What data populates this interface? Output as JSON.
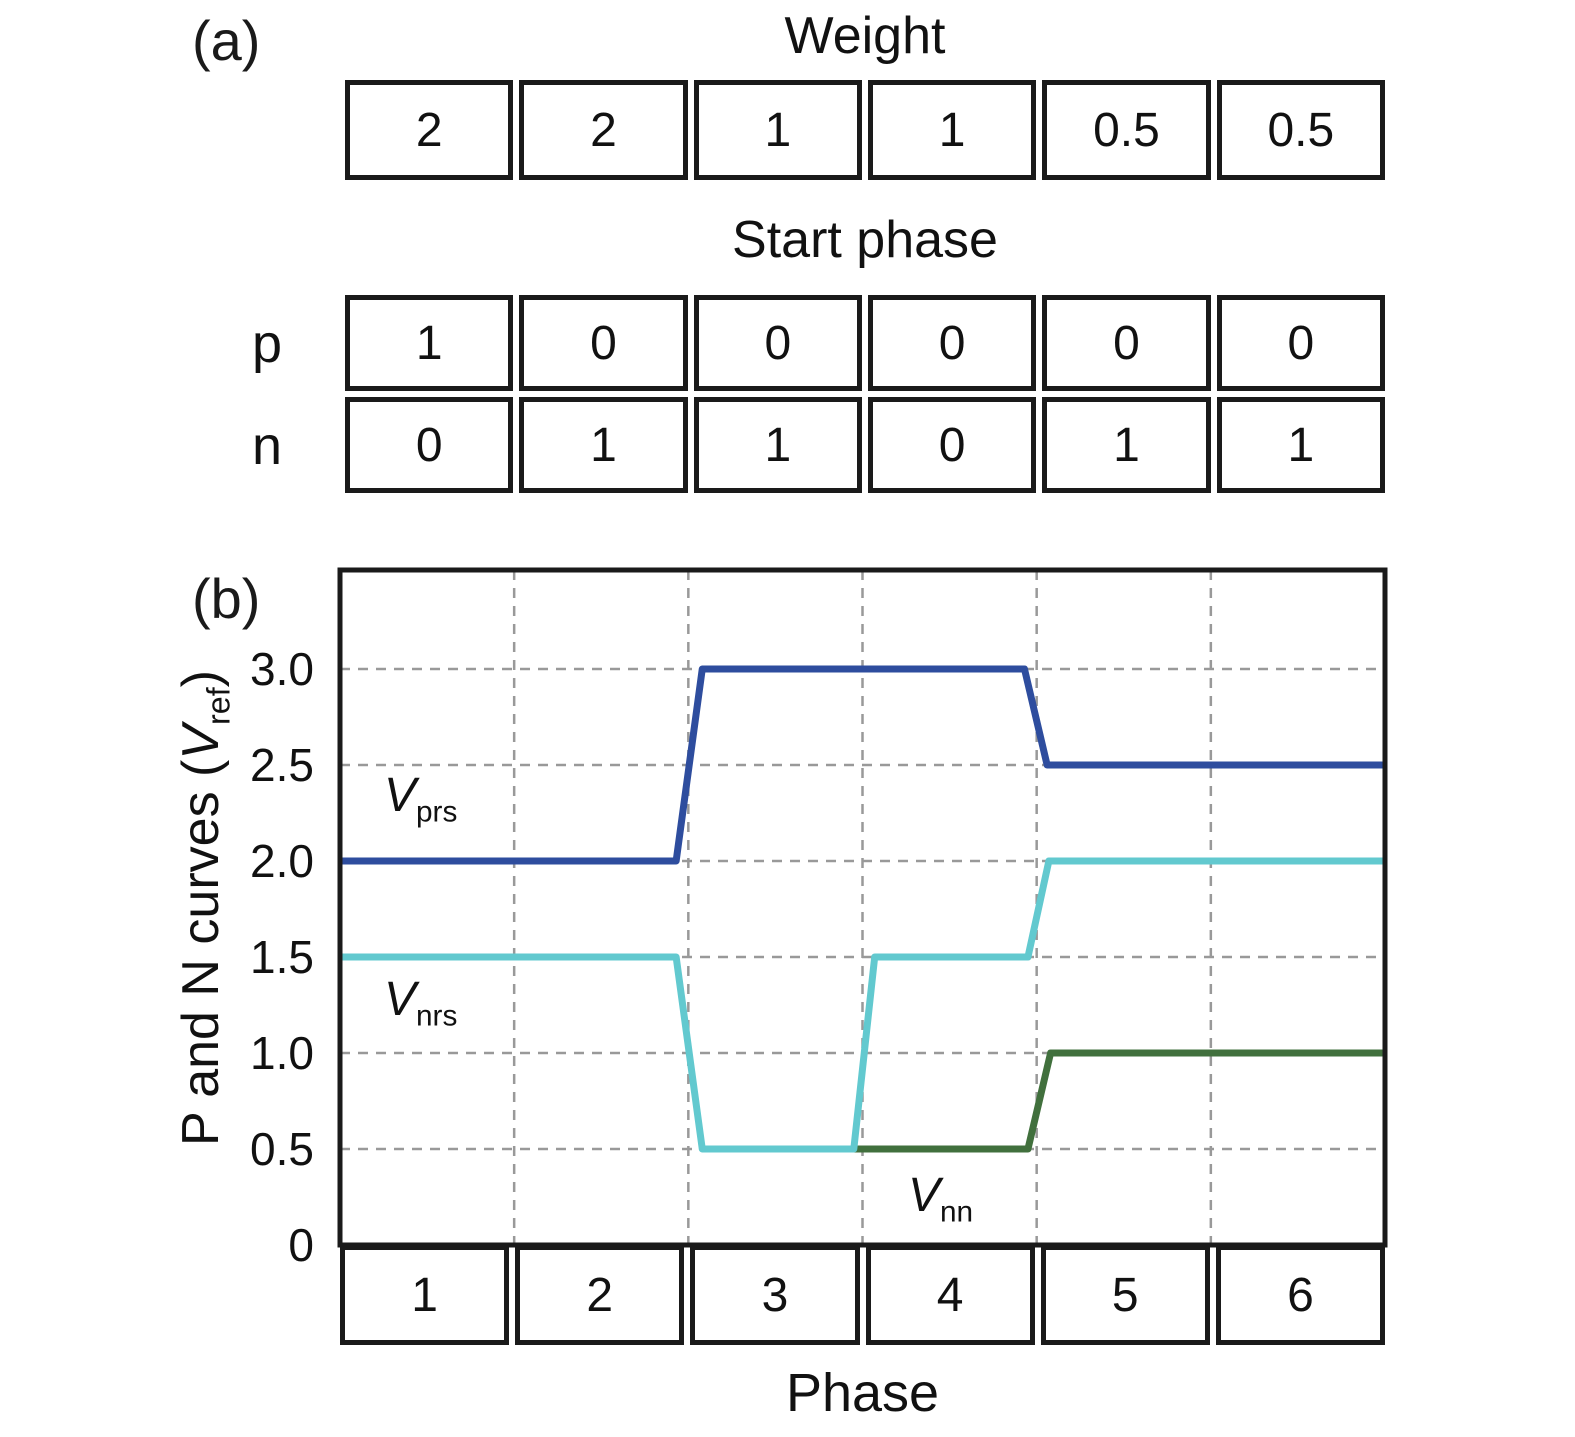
{
  "panel_a": {
    "label": "(a)",
    "weight": {
      "title": "Weight",
      "values": [
        "2",
        "2",
        "1",
        "1",
        "0.5",
        "0.5"
      ]
    },
    "start_phase": {
      "title": "Start phase",
      "rows": [
        {
          "label": "p",
          "values": [
            "1",
            "0",
            "0",
            "0",
            "0",
            "0"
          ]
        },
        {
          "label": "n",
          "values": [
            "0",
            "1",
            "1",
            "0",
            "1",
            "1"
          ]
        }
      ]
    }
  },
  "panel_b": {
    "label": "(b)",
    "xlabel": "Phase",
    "ylabel": {
      "prefix": "P and N curves (",
      "var": "V",
      "sub": "ref",
      "suffix": ")"
    },
    "curve_labels": [
      {
        "var": "V",
        "sub": "prs"
      },
      {
        "var": "V",
        "sub": "nrs"
      },
      {
        "var": "V",
        "sub": "nn"
      }
    ]
  },
  "chart_data": {
    "type": "line",
    "title": "",
    "xlabel": "Phase",
    "ylabel": "P and N curves (V_ref)",
    "x_categories": [
      "1",
      "2",
      "3",
      "4",
      "5",
      "6"
    ],
    "xlim": [
      0,
      6
    ],
    "ylim": [
      0,
      3.5
    ],
    "yticks": [
      0,
      0.5,
      1.0,
      1.5,
      2.0,
      2.5,
      3.0
    ],
    "grid": "dashed",
    "legend_position": "inline-labels",
    "colors": {
      "V_prs": "#2e4d9e",
      "V_nn": "#41703d",
      "V_nrs": "#62c9cf",
      "grid": "#999999",
      "frame": "#1a1a1a"
    },
    "series": [
      {
        "name": "V_prs",
        "color": "#2e4d9e",
        "points": [
          [
            0,
            2.0
          ],
          [
            1.93,
            2.0
          ],
          [
            2.08,
            3.0
          ],
          [
            3.93,
            3.0
          ],
          [
            4.06,
            2.5
          ],
          [
            6,
            2.5
          ]
        ]
      },
      {
        "name": "V_nn",
        "color": "#41703d",
        "points": [
          [
            2.08,
            0.5
          ],
          [
            3.95,
            0.5
          ],
          [
            4.08,
            1.0
          ],
          [
            6,
            1.0
          ]
        ]
      },
      {
        "name": "V_nrs",
        "color": "#62c9cf",
        "points": [
          [
            0,
            1.5
          ],
          [
            1.93,
            1.5
          ],
          [
            2.08,
            0.5
          ],
          [
            2.95,
            0.5
          ],
          [
            3.07,
            1.5
          ],
          [
            3.95,
            1.5
          ],
          [
            4.07,
            2.0
          ],
          [
            6,
            2.0
          ]
        ]
      }
    ]
  }
}
